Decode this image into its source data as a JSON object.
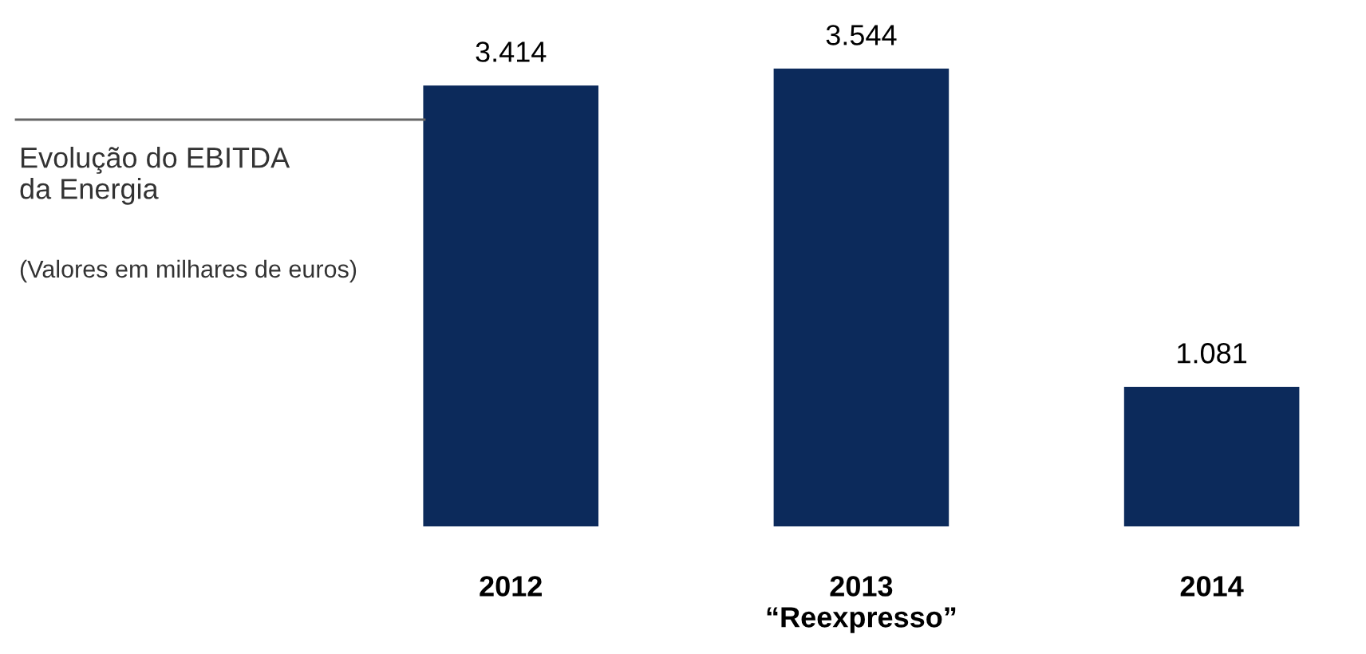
{
  "chart_data": {
    "type": "bar",
    "title": "Evolução do EBITDA\nda Energia",
    "subtitle": "(Valores em milhares de euros)",
    "categories": [
      "2012",
      "2013\n“Reexpresso”",
      "2014"
    ],
    "values": [
      3414,
      3544,
      1081
    ],
    "value_labels": [
      "3.414",
      "3.544",
      "1.081"
    ],
    "color": "#0c2a5b",
    "grid": false,
    "legend": false
  }
}
